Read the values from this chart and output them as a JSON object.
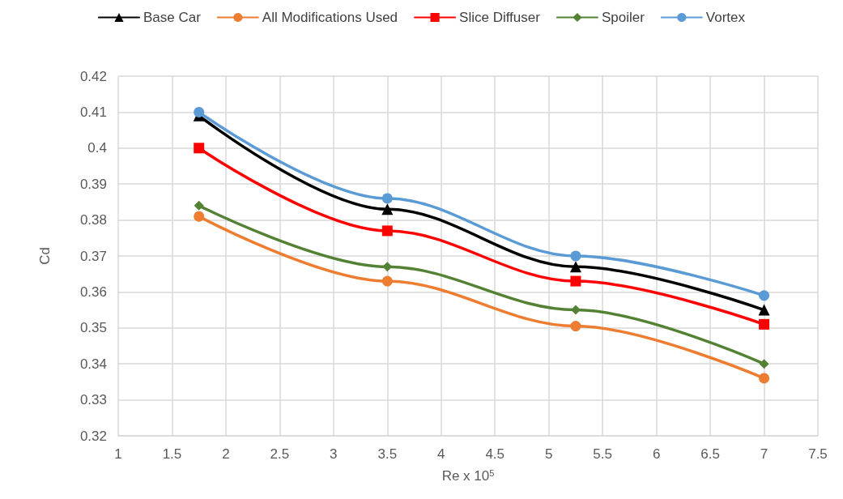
{
  "chart_data": {
    "type": "line",
    "xlabel": "Re x 10$^{5}$",
    "ylabel": "Cd",
    "x": [
      1.75,
      3.5,
      5.25,
      7
    ],
    "xlim": [
      1,
      7.5
    ],
    "xticks": [
      1,
      1.5,
      2,
      2.5,
      3,
      3.5,
      4,
      4.5,
      5,
      5.5,
      6,
      6.5,
      7,
      7.5
    ],
    "ylim": [
      0.32,
      0.42
    ],
    "yticks": [
      0.32,
      0.33,
      0.34,
      0.35,
      0.36,
      0.37,
      0.38,
      0.39,
      0.4,
      0.41,
      0.42
    ],
    "grid": true,
    "legend": "top",
    "line_style": "solid",
    "series": [
      {
        "name": "Base Car",
        "color": "#000000",
        "marker": "triangle",
        "values": [
          0.409,
          0.383,
          0.367,
          0.355
        ]
      },
      {
        "name": "All Modifications Used",
        "color": "#ed7d31",
        "marker": "circle",
        "values": [
          0.381,
          0.363,
          0.3505,
          0.336
        ]
      },
      {
        "name": "Slice Diffuser",
        "color": "#ff0000",
        "marker": "square",
        "values": [
          0.4,
          0.377,
          0.363,
          0.351
        ]
      },
      {
        "name": "Spoiler",
        "color": "#548235",
        "marker": "diamond",
        "values": [
          0.384,
          0.367,
          0.355,
          0.34
        ]
      },
      {
        "name": "Vortex",
        "color": "#5b9bd5",
        "marker": "circle",
        "values": [
          0.41,
          0.386,
          0.37,
          0.359
        ]
      }
    ]
  }
}
